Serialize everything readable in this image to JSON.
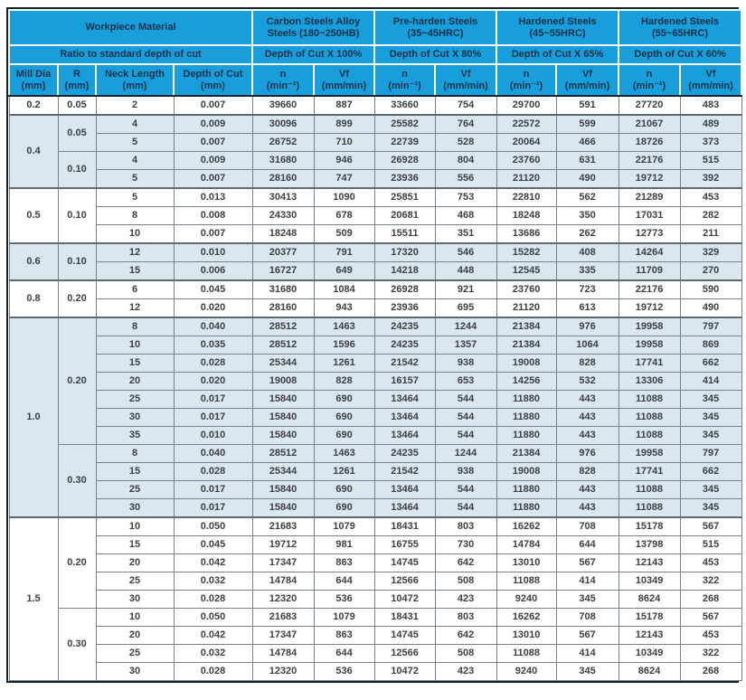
{
  "colors": {
    "header_blue": "#189fdb",
    "header_text": "#17304a",
    "shaded_row": "#dbe7ee",
    "body_text": "#3d4043",
    "grid_border": "#76828b",
    "outer_border": "#14202a"
  },
  "table": {
    "header": {
      "workpiece_material": "Workpiece Material",
      "ratio_label": "Ratio to standard depth of cut"
    },
    "materials": [
      {
        "name": "Carbon Steels Alloy",
        "sub": "Steels (180~250HB)",
        "ratio": "Depth of Cut X 100%"
      },
      {
        "name": "Pre-harden Steels",
        "sub": "(35~45HRC)",
        "ratio": "Depth of Cut X 80%"
      },
      {
        "name": "Hardened Steels",
        "sub": "(45~55HRC)",
        "ratio": "Depth of Cut X 65%"
      },
      {
        "name": "Hardened Steels",
        "sub": "(55~65HRC)",
        "ratio": "Depth of Cut X 60%"
      }
    ],
    "cols": {
      "mill_dia": "Mill Dia",
      "mill_dia_unit": "(mm)",
      "r": "R",
      "r_unit": "(mm)",
      "neck": "Neck Length",
      "neck_unit": "(mm)",
      "doc": "Depth of Cut",
      "doc_unit": "(mm)",
      "n": "n",
      "n_unit": "(min⁻¹)",
      "vf": "Vf",
      "vf_unit": "(mm/min)"
    },
    "groups": [
      {
        "dia": "0.2",
        "shaded": false,
        "rgroups": [
          {
            "r": "0.05",
            "rows": [
              {
                "neck": "2",
                "doc": "0.007",
                "vals": [
                  39660,
                  887,
                  33660,
                  754,
                  29700,
                  591,
                  27720,
                  483
                ]
              }
            ]
          }
        ]
      },
      {
        "dia": "0.4",
        "shaded": true,
        "rgroups": [
          {
            "r": "0.05",
            "rows": [
              {
                "neck": "4",
                "doc": "0.009",
                "vals": [
                  30096,
                  899,
                  25582,
                  764,
                  22572,
                  599,
                  21067,
                  489
                ]
              },
              {
                "neck": "5",
                "doc": "0.007",
                "vals": [
                  26752,
                  710,
                  22739,
                  528,
                  20064,
                  466,
                  18726,
                  373
                ]
              }
            ]
          },
          {
            "r": "0.10",
            "rows": [
              {
                "neck": "4",
                "doc": "0.009",
                "vals": [
                  31680,
                  946,
                  26928,
                  804,
                  23760,
                  631,
                  22176,
                  515
                ]
              },
              {
                "neck": "5",
                "doc": "0.007",
                "vals": [
                  28160,
                  747,
                  23936,
                  556,
                  21120,
                  490,
                  19712,
                  392
                ]
              }
            ]
          }
        ]
      },
      {
        "dia": "0.5",
        "shaded": false,
        "rgroups": [
          {
            "r": "0.10",
            "rows": [
              {
                "neck": "5",
                "doc": "0.013",
                "vals": [
                  30413,
                  1090,
                  25851,
                  753,
                  22810,
                  562,
                  21289,
                  453
                ]
              },
              {
                "neck": "8",
                "doc": "0.008",
                "vals": [
                  24330,
                  678,
                  20681,
                  468,
                  18248,
                  350,
                  17031,
                  282
                ]
              },
              {
                "neck": "10",
                "doc": "0.007",
                "vals": [
                  18248,
                  509,
                  15511,
                  351,
                  13686,
                  262,
                  12773,
                  211
                ]
              }
            ]
          }
        ]
      },
      {
        "dia": "0.6",
        "shaded": true,
        "rgroups": [
          {
            "r": "0.10",
            "rows": [
              {
                "neck": "12",
                "doc": "0.010",
                "vals": [
                  20377,
                  791,
                  17320,
                  546,
                  15282,
                  408,
                  14264,
                  329
                ]
              },
              {
                "neck": "15",
                "doc": "0.006",
                "vals": [
                  16727,
                  649,
                  14218,
                  448,
                  12545,
                  335,
                  11709,
                  270
                ]
              }
            ]
          }
        ]
      },
      {
        "dia": "0.8",
        "shaded": false,
        "rgroups": [
          {
            "r": "0.20",
            "rows": [
              {
                "neck": "6",
                "doc": "0.045",
                "vals": [
                  31680,
                  1084,
                  26928,
                  921,
                  23760,
                  723,
                  22176,
                  590
                ]
              },
              {
                "neck": "12",
                "doc": "0.020",
                "vals": [
                  28160,
                  943,
                  23936,
                  695,
                  21120,
                  613,
                  19712,
                  490
                ]
              }
            ]
          }
        ]
      },
      {
        "dia": "1.0",
        "shaded": true,
        "rgroups": [
          {
            "r": "0.20",
            "rows": [
              {
                "neck": "8",
                "doc": "0.040",
                "vals": [
                  28512,
                  1463,
                  24235,
                  1244,
                  21384,
                  976,
                  19958,
                  797
                ]
              },
              {
                "neck": "10",
                "doc": "0.035",
                "vals": [
                  28512,
                  1596,
                  24235,
                  1357,
                  21384,
                  1064,
                  19958,
                  869
                ]
              },
              {
                "neck": "15",
                "doc": "0.028",
                "vals": [
                  25344,
                  1261,
                  21542,
                  938,
                  19008,
                  828,
                  17741,
                  662
                ]
              },
              {
                "neck": "20",
                "doc": "0.020",
                "vals": [
                  19008,
                  828,
                  16157,
                  653,
                  14256,
                  532,
                  13306,
                  414
                ]
              },
              {
                "neck": "25",
                "doc": "0.017",
                "vals": [
                  15840,
                  690,
                  13464,
                  544,
                  11880,
                  443,
                  11088,
                  345
                ]
              },
              {
                "neck": "30",
                "doc": "0.017",
                "vals": [
                  15840,
                  690,
                  13464,
                  544,
                  11880,
                  443,
                  11088,
                  345
                ]
              },
              {
                "neck": "35",
                "doc": "0.010",
                "vals": [
                  15840,
                  690,
                  13464,
                  544,
                  11880,
                  443,
                  11088,
                  345
                ]
              }
            ]
          },
          {
            "r": "0.30",
            "rows": [
              {
                "neck": "8",
                "doc": "0.040",
                "vals": [
                  28512,
                  1463,
                  24235,
                  1244,
                  21384,
                  976,
                  19958,
                  797
                ]
              },
              {
                "neck": "15",
                "doc": "0.028",
                "vals": [
                  25344,
                  1261,
                  21542,
                  938,
                  19008,
                  828,
                  17741,
                  662
                ]
              },
              {
                "neck": "25",
                "doc": "0.017",
                "vals": [
                  15840,
                  690,
                  13464,
                  544,
                  11880,
                  443,
                  11088,
                  345
                ]
              },
              {
                "neck": "30",
                "doc": "0.017",
                "vals": [
                  15840,
                  690,
                  13464,
                  544,
                  11880,
                  443,
                  11088,
                  345
                ]
              }
            ]
          }
        ]
      },
      {
        "dia": "1.5",
        "shaded": false,
        "rgroups": [
          {
            "r": "0.20",
            "rows": [
              {
                "neck": "10",
                "doc": "0.050",
                "vals": [
                  21683,
                  1079,
                  18431,
                  803,
                  16262,
                  708,
                  15178,
                  567
                ]
              },
              {
                "neck": "15",
                "doc": "0.045",
                "vals": [
                  19712,
                  981,
                  16755,
                  730,
                  14784,
                  644,
                  13798,
                  515
                ]
              },
              {
                "neck": "20",
                "doc": "0.042",
                "vals": [
                  17347,
                  863,
                  14745,
                  642,
                  13010,
                  567,
                  12143,
                  453
                ]
              },
              {
                "neck": "25",
                "doc": "0.032",
                "vals": [
                  14784,
                  644,
                  12566,
                  508,
                  11088,
                  414,
                  10349,
                  322
                ]
              },
              {
                "neck": "30",
                "doc": "0.028",
                "vals": [
                  12320,
                  536,
                  10472,
                  423,
                  9240,
                  345,
                  8624,
                  268
                ]
              }
            ]
          },
          {
            "r": "0.30",
            "rows": [
              {
                "neck": "10",
                "doc": "0.050",
                "vals": [
                  21683,
                  1079,
                  18431,
                  803,
                  16262,
                  708,
                  15178,
                  567
                ]
              },
              {
                "neck": "20",
                "doc": "0.042",
                "vals": [
                  17347,
                  863,
                  14745,
                  642,
                  13010,
                  567,
                  12143,
                  453
                ]
              },
              {
                "neck": "25",
                "doc": "0.032",
                "vals": [
                  14784,
                  644,
                  12566,
                  508,
                  11088,
                  414,
                  10349,
                  322
                ]
              },
              {
                "neck": "30",
                "doc": "0.028",
                "vals": [
                  12320,
                  536,
                  10472,
                  423,
                  9240,
                  345,
                  8624,
                  268
                ]
              }
            ]
          }
        ]
      }
    ]
  }
}
